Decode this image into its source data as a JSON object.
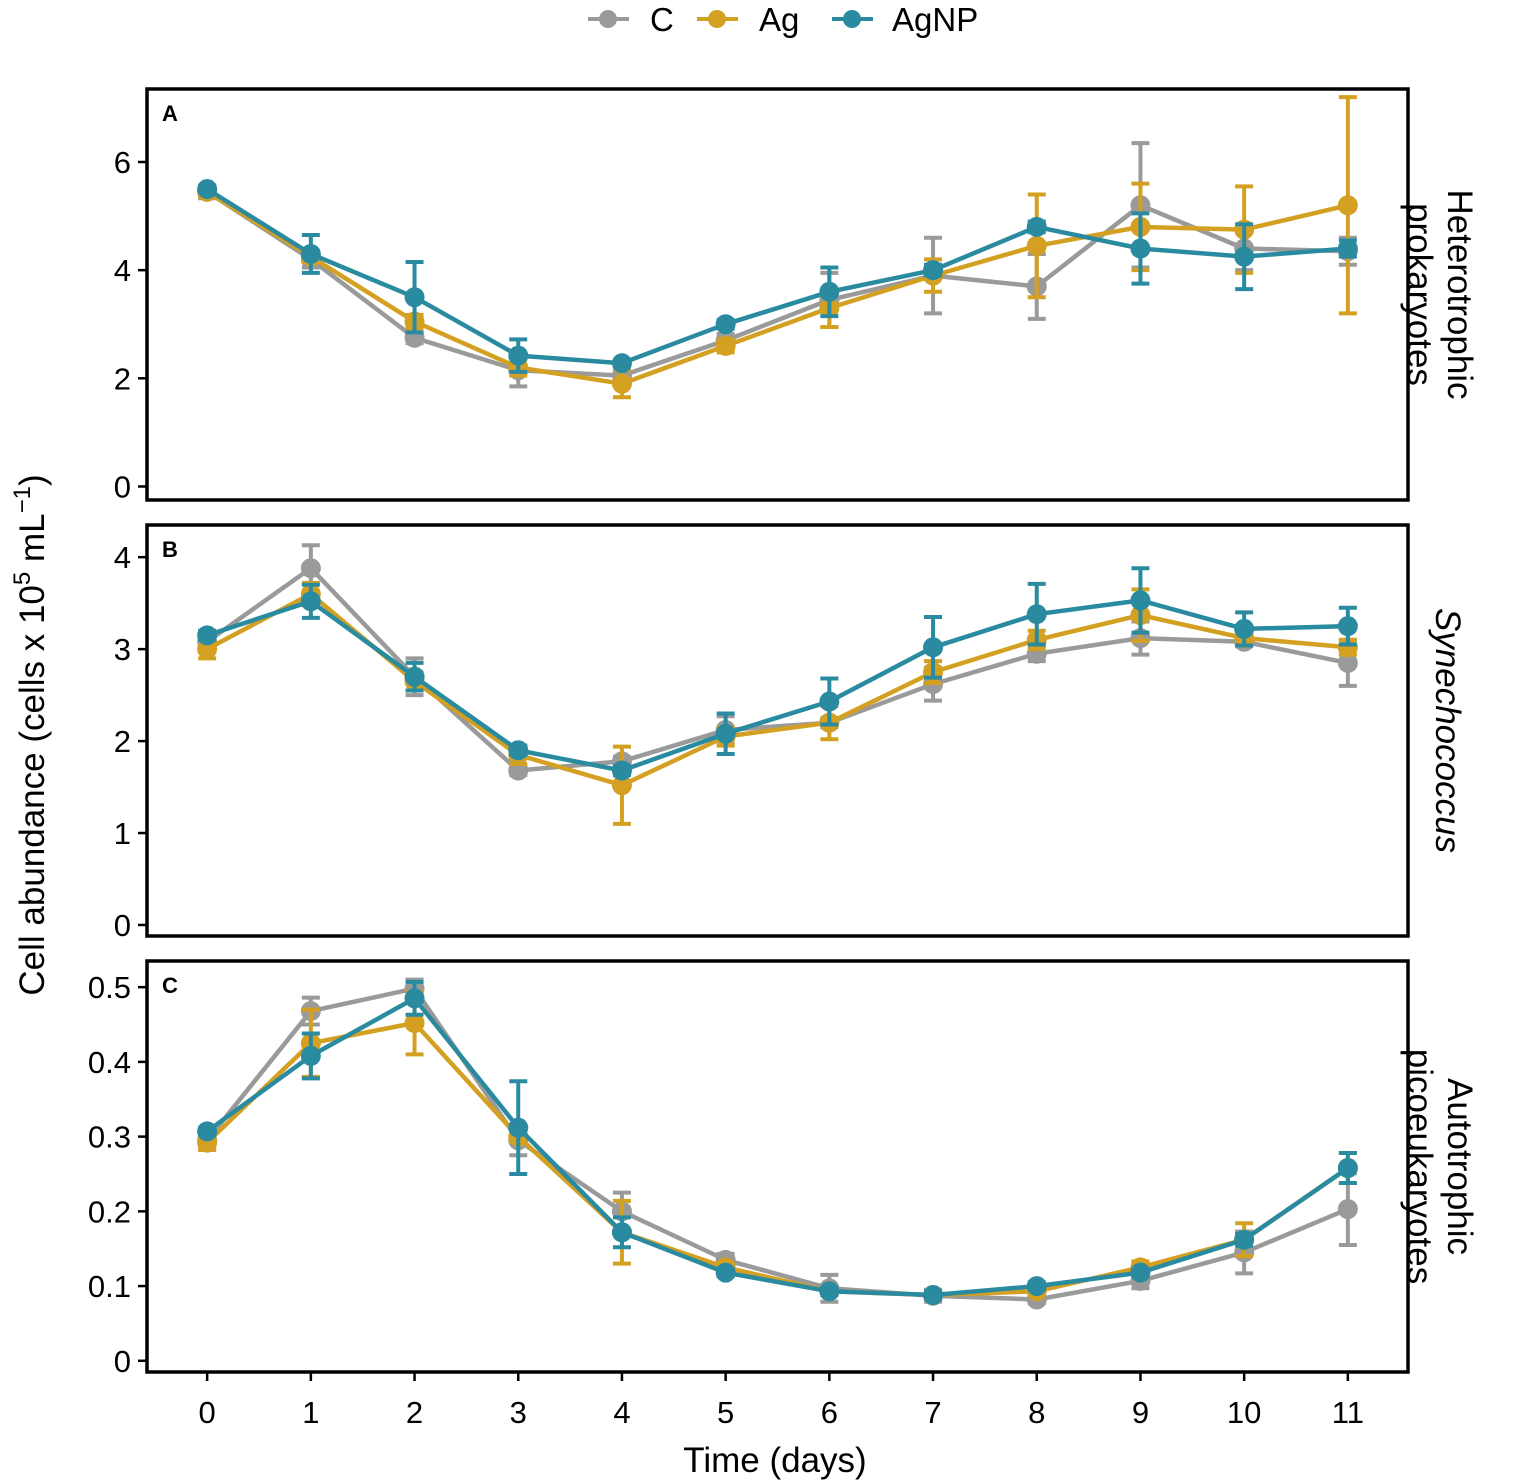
{
  "legend": {
    "position": "top-center",
    "entries": [
      {
        "name": "C",
        "color": "#9a9a9a"
      },
      {
        "name": "Ag",
        "color": "#d4a021"
      },
      {
        "name": "AgNP",
        "color": "#2a8ba0"
      }
    ]
  },
  "ylabel_main": "Cell abundance (cells x 10",
  "ylabel_sup": "5",
  "ylabel_mid": " mL",
  "ylabel_sup2": "−1",
  "ylabel_end": ")",
  "xlabel": "Time (days)",
  "chart_data": [
    {
      "type": "line",
      "panel_letter": "A",
      "strip_label": [
        "Heterotrophic",
        "prokaryotes"
      ],
      "strip_italic": false,
      "x": [
        0,
        1,
        2,
        3,
        4,
        5,
        6,
        7,
        8,
        9,
        10,
        11
      ],
      "ylim": [
        -0.25,
        7.35
      ],
      "yticks": [
        0,
        2,
        4,
        6
      ],
      "ytick_labels": [
        "0",
        "2",
        "4",
        "6"
      ],
      "series": [
        {
          "name": "C",
          "color": "#9a9a9a",
          "values": [
            5.45,
            4.2,
            2.75,
            2.15,
            2.05,
            2.7,
            3.45,
            3.9,
            3.7,
            5.2,
            4.4,
            4.35
          ],
          "errors": [
            0.12,
            0.15,
            0.1,
            0.3,
            0.1,
            0.12,
            0.5,
            0.7,
            0.6,
            1.15,
            0.4,
            0.25
          ]
        },
        {
          "name": "Ag",
          "color": "#d4a021",
          "values": [
            5.45,
            4.25,
            3.05,
            2.2,
            1.9,
            2.6,
            3.3,
            3.9,
            4.45,
            4.8,
            4.75,
            5.2
          ],
          "errors": [
            0.1,
            0.1,
            0.12,
            0.15,
            0.25,
            0.12,
            0.35,
            0.3,
            0.95,
            0.8,
            0.8,
            2.0
          ]
        },
        {
          "name": "AgNP",
          "color": "#2a8ba0",
          "values": [
            5.5,
            4.3,
            3.5,
            2.42,
            2.28,
            3.0,
            3.6,
            4.0,
            4.8,
            4.4,
            4.25,
            4.4
          ]
        },
        {
          "name": "AgNP_errors",
          "color": "#2a8ba0",
          "errors": [
            0.05,
            0.35,
            0.65,
            0.3,
            0.05,
            0.08,
            0.45,
            0.1,
            0.1,
            0.65,
            0.6,
            0.15
          ]
        }
      ]
    },
    {
      "type": "line",
      "panel_letter": "B",
      "strip_label": [
        "Synechococcus"
      ],
      "strip_italic": true,
      "x": [
        0,
        1,
        2,
        3,
        4,
        5,
        6,
        7,
        8,
        9,
        10,
        11
      ],
      "ylim": [
        -0.12,
        4.35
      ],
      "yticks": [
        0,
        1,
        2,
        3,
        4
      ],
      "ytick_labels": [
        "0",
        "1",
        "2",
        "3",
        "4"
      ],
      "series": [
        {
          "name": "C",
          "color": "#9a9a9a",
          "values": [
            3.08,
            3.88,
            2.7,
            1.68,
            1.78,
            2.12,
            2.2,
            2.62,
            2.95,
            3.12,
            3.08,
            2.85
          ],
          "errors": [
            0.05,
            0.25,
            0.2,
            0.05,
            0.05,
            0.15,
            0.05,
            0.18,
            0.08,
            0.18,
            0.05,
            0.25
          ]
        },
        {
          "name": "Ag",
          "color": "#d4a021",
          "values": [
            3.0,
            3.6,
            2.65,
            1.85,
            1.52,
            2.05,
            2.2,
            2.75,
            3.1,
            3.37,
            3.12,
            3.02
          ],
          "errors": [
            0.1,
            0.12,
            0.1,
            0.1,
            0.42,
            0.1,
            0.18,
            0.12,
            0.1,
            0.28,
            0.05,
            0.08
          ]
        },
        {
          "name": "AgNP",
          "color": "#2a8ba0",
          "values": [
            3.15,
            3.52,
            2.7,
            1.9,
            1.68,
            2.08,
            2.43,
            3.02,
            3.38,
            3.53,
            3.22,
            3.25
          ],
          "errors": [
            0.05,
            0.18,
            0.15,
            0.05,
            0.05,
            0.22,
            0.25,
            0.33,
            0.33,
            0.35,
            0.18,
            0.2
          ]
        }
      ]
    },
    {
      "type": "line",
      "panel_letter": "C",
      "strip_label": [
        "Autotrophic",
        "picoeukaryotes"
      ],
      "strip_italic": false,
      "x": [
        0,
        1,
        2,
        3,
        4,
        5,
        6,
        7,
        8,
        9,
        10,
        11
      ],
      "ylim": [
        -0.015,
        0.535
      ],
      "yticks": [
        0,
        0.1,
        0.2,
        0.3,
        0.4,
        0.5
      ],
      "ytick_labels": [
        "0",
        "0.1",
        "0.2",
        "0.3",
        "0.4",
        "0.5"
      ],
      "series": [
        {
          "name": "C",
          "color": "#9a9a9a",
          "values": [
            0.295,
            0.468,
            0.498,
            0.295,
            0.2,
            0.135,
            0.097,
            0.087,
            0.082,
            0.107,
            0.145,
            0.203
          ],
          "errors": [
            0.01,
            0.018,
            0.012,
            0.02,
            0.025,
            0.008,
            0.018,
            0.008,
            0.005,
            0.01,
            0.028,
            0.048
          ]
        },
        {
          "name": "Ag",
          "color": "#d4a021",
          "values": [
            0.292,
            0.425,
            0.452,
            0.3,
            0.172,
            0.125,
            0.093,
            0.088,
            0.093,
            0.125,
            0.162,
            0.258
          ],
          "errors": [
            0.01,
            0.045,
            0.042,
            0.008,
            0.042,
            0.005,
            0.005,
            0.005,
            0.005,
            0.008,
            0.022,
            0.02
          ]
        },
        {
          "name": "AgNP",
          "color": "#2a8ba0",
          "values": [
            0.307,
            0.408,
            0.485,
            0.312,
            0.172,
            0.118,
            0.093,
            0.088,
            0.1,
            0.118,
            0.162,
            0.258
          ],
          "errors": [
            0.005,
            0.03,
            0.022,
            0.062,
            0.02,
            0.005,
            0.005,
            0.005,
            0.005,
            0.005,
            0.008,
            0.02
          ]
        }
      ]
    }
  ]
}
